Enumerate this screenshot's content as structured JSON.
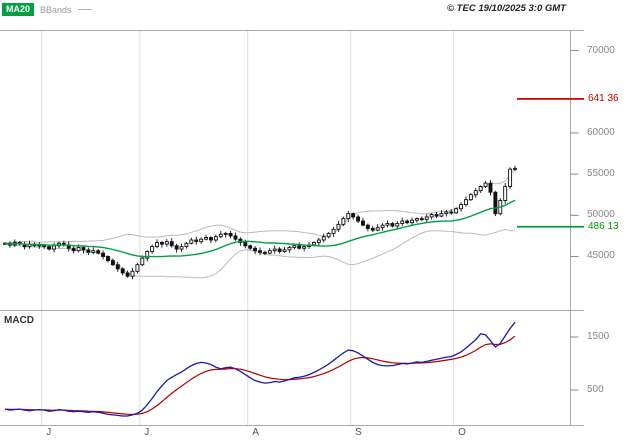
{
  "header": {
    "ma20_label": "MA20",
    "bbands_label": "BBands",
    "copyright": "© TEC 19/10/2025 3:0 GMT"
  },
  "colors": {
    "green": "#00a040",
    "red_level": "#cc0000",
    "signal_red": "#b00000",
    "macd_blue": "#1a1aae",
    "band_gray": "#bbbbbb",
    "grid": "#dddddd",
    "frame": "#aaaaaa",
    "candle": "#111111",
    "axis_text": "#888888"
  },
  "price_panel": {
    "axis_labels": [
      {
        "value": 70000,
        "label": "70000"
      },
      {
        "value": 60000,
        "label": "60000"
      },
      {
        "value": 55000,
        "label": "55000"
      },
      {
        "value": 50000,
        "label": "50000"
      },
      {
        "value": 45000,
        "label": "45000"
      }
    ],
    "levels": {
      "resistance": {
        "value": 64136,
        "label": "641 36"
      },
      "support": {
        "value": 48613,
        "label": "486 13"
      }
    }
  },
  "macd_panel": {
    "label": "MACD",
    "axis_labels": [
      {
        "value": 1500,
        "label": "1500"
      },
      {
        "value": 500,
        "label": "500"
      }
    ]
  },
  "x_axis": {
    "month_ticks": [
      {
        "label": "J",
        "index": 8
      },
      {
        "label": "J",
        "index": 28
      },
      {
        "label": "A",
        "index": 50
      },
      {
        "label": "S",
        "index": 71
      },
      {
        "label": "O",
        "index": 92
      }
    ]
  },
  "chart_data": [
    {
      "type": "candlestick",
      "title": "Price with MA20 and Bollinger Bands",
      "ylim": [
        38500,
        72500
      ],
      "y_axis_ticks": [
        45000,
        50000,
        55000,
        60000,
        70000
      ],
      "overlays": [
        "MA20 (green, 20-period moving average of closes)",
        "Bollinger Bands (gray, MA20 +/- 2 std dev)"
      ],
      "levels": [
        {
          "name": "resistance",
          "value": 64136,
          "color": "#cc0000"
        },
        {
          "name": "support",
          "value": 48613,
          "color": "#00a040"
        }
      ],
      "closes": [
        46600,
        46400,
        46700,
        46500,
        46200,
        46500,
        46300,
        46400,
        46200,
        45900,
        46300,
        46600,
        46400,
        46000,
        45700,
        46100,
        45800,
        45500,
        45700,
        45400,
        45000,
        44500,
        44000,
        43500,
        43000,
        42600,
        43200,
        44000,
        44800,
        45600,
        46200,
        46700,
        46500,
        46800,
        46300,
        45900,
        46200,
        46600,
        47000,
        46800,
        47100,
        47300,
        47000,
        47400,
        47700,
        47800,
        47500,
        47100,
        46700,
        46300,
        46000,
        45700,
        45500,
        45400,
        45700,
        45900,
        45600,
        45800,
        46100,
        46300,
        46000,
        46200,
        46400,
        46700,
        47000,
        47400,
        47800,
        48300,
        48900,
        49600,
        50200,
        49800,
        49300,
        48800,
        48400,
        48200,
        48500,
        48800,
        49000,
        48700,
        49000,
        49300,
        49100,
        49400,
        49600,
        49500,
        49800,
        50100,
        49900,
        50200,
        50400,
        50300,
        50800,
        51300,
        51900,
        52500,
        53000,
        53500,
        53900,
        52800,
        50200,
        51800,
        53500,
        55600,
        55700
      ]
    },
    {
      "type": "line",
      "title": "MACD",
      "ylim": [
        -160,
        1990
      ],
      "y_axis_ticks": [
        500,
        1500
      ],
      "series": [
        {
          "name": "macd",
          "color": "#1a1aae",
          "values": [
            140,
            120,
            130,
            140,
            120,
            110,
            120,
            130,
            120,
            100,
            110,
            130,
            120,
            100,
            90,
            100,
            90,
            80,
            90,
            80,
            60,
            40,
            30,
            20,
            10,
            10,
            30,
            60,
            120,
            220,
            340,
            470,
            580,
            680,
            740,
            790,
            840,
            900,
            960,
            1000,
            1020,
            1010,
            980,
            930,
            900,
            920,
            930,
            900,
            850,
            790,
            730,
            680,
            650,
            630,
            640,
            660,
            650,
            670,
            700,
            730,
            740,
            760,
            790,
            830,
            880,
            930,
            990,
            1060,
            1130,
            1200,
            1255,
            1240,
            1200,
            1140,
            1080,
            1020,
            980,
            960,
            955,
            960,
            980,
            1000,
            990,
            1010,
            1030,
            1020,
            1040,
            1060,
            1080,
            1100,
            1120,
            1130,
            1170,
            1220,
            1290,
            1370,
            1450,
            1560,
            1540,
            1430,
            1310,
            1380,
            1520,
            1660,
            1780
          ]
        },
        {
          "name": "signal",
          "color": "#b00000",
          "derived": "ema9(macd)"
        }
      ]
    }
  ]
}
